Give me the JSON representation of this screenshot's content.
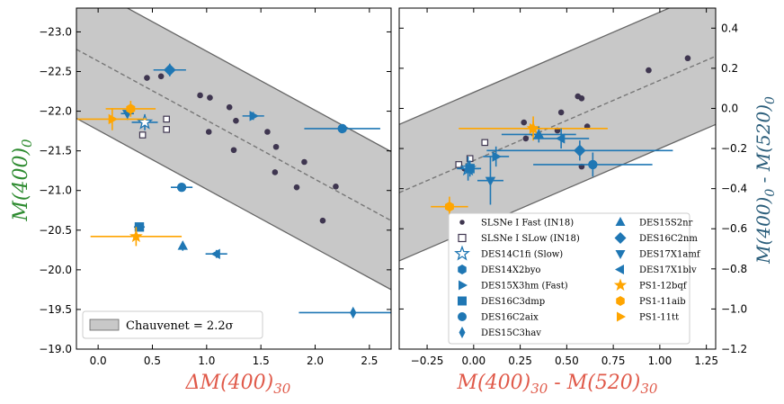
{
  "colors": {
    "blue": "#1f77b4",
    "orange": "#ffa500",
    "dark": "#3f3650",
    "green": "#2e8b30",
    "red": "#e05a4a",
    "teal": "#2a5d7a",
    "band": "#c8c8c8",
    "band_edge": "#666666"
  },
  "chart_data": [
    {
      "type": "scatter",
      "panel": "left",
      "xlabel": "ΔM(400)30",
      "ylabel": "M(400)0",
      "xlim": [
        -0.2,
        2.7
      ],
      "ylim": [
        -19.0,
        -23.3
      ],
      "xticks": [
        0.0,
        0.5,
        1.0,
        1.5,
        2.0,
        2.5
      ],
      "xtick_labels": [
        "0.0",
        "0.5",
        "1.0",
        "1.5",
        "2.0",
        "2.5"
      ],
      "yticks": [
        -19.0,
        -19.5,
        -20.0,
        -20.5,
        -21.0,
        -21.5,
        -22.0,
        -22.5,
        -23.0
      ],
      "ytick_labels": [
        "−19.0",
        "−19.5",
        "−20.0",
        "−20.5",
        "−21.0",
        "−21.5",
        "−22.0",
        "−22.5",
        "−23.0"
      ],
      "trend": {
        "y_at_xmin": -22.78,
        "y_at_xmax": -20.62,
        "band_halfwidth": 0.87
      },
      "legend_label": "Chauvenet = 2.2σ",
      "fast_points": [
        [
          0.45,
          -22.42
        ],
        [
          0.58,
          -22.44
        ],
        [
          0.94,
          -22.2
        ],
        [
          1.03,
          -22.17
        ],
        [
          1.02,
          -21.74
        ],
        [
          1.21,
          -22.05
        ],
        [
          1.27,
          -21.88
        ],
        [
          1.25,
          -21.51
        ],
        [
          1.56,
          -21.74
        ],
        [
          1.64,
          -21.55
        ],
        [
          1.63,
          -21.23
        ],
        [
          1.83,
          -21.04
        ],
        [
          1.9,
          -21.36
        ],
        [
          2.07,
          -20.62
        ],
        [
          2.19,
          -21.05
        ]
      ],
      "slow_points": [
        [
          0.41,
          -21.7
        ],
        [
          0.63,
          -21.77
        ],
        [
          0.63,
          -21.9
        ]
      ],
      "objects": [
        {
          "name": "DES16C2nm",
          "marker": "diamond",
          "color": "blue",
          "x": 0.66,
          "y": -22.52,
          "xerr": 0.15,
          "yerr": 0.08
        },
        {
          "name": "DES15X3hm",
          "marker": "tri-right",
          "color": "blue",
          "x": 1.43,
          "y": -21.94,
          "xerr": 0.1,
          "yerr": 0.05
        },
        {
          "name": "DES14C1fi",
          "marker": "star-open",
          "color": "blue",
          "x": 0.43,
          "y": -21.86,
          "xerr": 0.12,
          "yerr": 0.1
        },
        {
          "name": "DES17X1amf",
          "marker": "tri-down",
          "color": "blue",
          "x": 0.27,
          "y": -21.97,
          "xerr": 0.06,
          "yerr": 0.08
        },
        {
          "name": "PS1-11aib",
          "marker": "hexagon",
          "color": "orange",
          "x": 0.3,
          "y": -22.03,
          "xerr": 0.23,
          "yerr": 0.1
        },
        {
          "name": "PS1-11tt",
          "marker": "tri-right",
          "color": "orange",
          "x": 0.13,
          "y": -21.9,
          "xerr": 0.32,
          "yerr": 0.14
        },
        {
          "name": "DES16C2aix",
          "marker": "circle",
          "color": "blue",
          "x": 2.25,
          "y": -21.78,
          "xerr": 0.35,
          "yerr": 0.05
        },
        {
          "name": "DES16C2aix",
          "marker": "circle",
          "color": "blue",
          "x": 0.77,
          "y": -21.04,
          "xerr": 0.1,
          "yerr": 0.05
        },
        {
          "name": "DES16C3dmp",
          "marker": "square",
          "color": "blue",
          "x": 0.38,
          "y": -20.54,
          "xerr": 0.05,
          "yerr": 0.05
        },
        {
          "name": "PS1-12bqf",
          "marker": "star",
          "color": "orange",
          "x": 0.35,
          "y": -20.42,
          "xerr": 0.42,
          "yerr": 0.12
        },
        {
          "name": "DES15S2nr",
          "marker": "tri-up",
          "color": "blue",
          "x": 0.78,
          "y": -20.3,
          "xerr": 0.02,
          "yerr": 0.06
        },
        {
          "name": "DES17X1blv",
          "marker": "tri-left",
          "color": "blue",
          "x": 1.09,
          "y": -20.2,
          "xerr": 0.1,
          "yerr": 0.05
        },
        {
          "name": "DES15C3hav",
          "marker": "thin-diamond",
          "color": "blue",
          "x": 2.35,
          "y": -19.46,
          "xerr": 0.5,
          "yerr": 0.05
        }
      ]
    },
    {
      "type": "scatter",
      "panel": "right",
      "xlabel": "M(400)30 - M(520)30",
      "ylabel": "M(400)0 - M(520)0",
      "xlim": [
        -0.4,
        1.3
      ],
      "ylim": [
        -1.2,
        0.5
      ],
      "xticks": [
        -0.25,
        0.0,
        0.25,
        0.5,
        0.75,
        1.0,
        1.25
      ],
      "xtick_labels": [
        "−0.25",
        "0.00",
        "0.25",
        "0.50",
        "0.75",
        "1.00",
        "1.25"
      ],
      "yticks": [
        -1.2,
        -1.0,
        -0.8,
        -0.6,
        -0.4,
        -0.2,
        0.0,
        0.2,
        0.4
      ],
      "ytick_labels": [
        "−1.2",
        "−1.0",
        "−0.8",
        "−0.6",
        "−0.4",
        "−0.2",
        "0.0",
        "0.2",
        "0.4"
      ],
      "trend": {
        "y_at_xmin": -0.42,
        "y_at_xmax": 0.26,
        "band_halfwidth": 0.34
      },
      "fast_points": [
        [
          -0.05,
          -0.3
        ],
        [
          0.27,
          -0.07
        ],
        [
          0.28,
          -0.15
        ],
        [
          0.45,
          -0.11
        ],
        [
          0.47,
          -0.02
        ],
        [
          0.56,
          0.06
        ],
        [
          0.58,
          0.05
        ],
        [
          0.58,
          -0.29
        ],
        [
          0.61,
          -0.09
        ],
        [
          0.94,
          0.19
        ],
        [
          1.15,
          0.25
        ]
      ],
      "slow_points": [
        [
          -0.08,
          -0.28
        ],
        [
          -0.02,
          -0.25
        ],
        [
          0.06,
          -0.17
        ]
      ],
      "objects": [
        {
          "name": "PS1-12bqf",
          "marker": "star",
          "color": "orange",
          "x": 0.32,
          "y": -0.1,
          "xerr": 0.4,
          "yerr": 0.06
        },
        {
          "name": "DES16C2nm",
          "marker": "diamond",
          "color": "blue",
          "x": 0.57,
          "y": -0.21,
          "xerr": 0.5,
          "yerr": 0.05
        },
        {
          "name": "DES17X1blv",
          "marker": "tri-left",
          "color": "blue",
          "x": 0.47,
          "y": -0.15,
          "xerr": 0.15,
          "yerr": 0.05
        },
        {
          "name": "DES15S2nr",
          "marker": "tri-up",
          "color": "blue",
          "x": 0.35,
          "y": -0.13,
          "xerr": 0.2,
          "yerr": 0.04
        },
        {
          "name": "DES15X3hm",
          "marker": "tri-right",
          "color": "blue",
          "x": 0.12,
          "y": -0.24,
          "xerr": 0.07,
          "yerr": 0.05
        },
        {
          "name": "DES14C1fi",
          "marker": "star-open",
          "color": "blue",
          "x": -0.03,
          "y": -0.3,
          "xerr": 0.06,
          "yerr": 0.06
        },
        {
          "name": "DES16C3dmp",
          "marker": "square",
          "color": "blue",
          "x": -0.02,
          "y": -0.3,
          "xerr": 0.06,
          "yerr": 0.04
        },
        {
          "name": "DES17X1amf",
          "marker": "tri-down",
          "color": "blue",
          "x": 0.09,
          "y": -0.36,
          "xerr": 0.07,
          "yerr": 0.12
        },
        {
          "name": "DES16C2aix",
          "marker": "circle",
          "color": "blue",
          "x": 0.64,
          "y": -0.28,
          "xerr": 0.32,
          "yerr": 0.06
        },
        {
          "name": "PS1-11aib",
          "marker": "hexagon",
          "color": "orange",
          "x": -0.13,
          "y": -0.49,
          "xerr": 0.1,
          "yerr": 0.05
        },
        {
          "name": "PS1-11tt",
          "marker": "tri-right",
          "color": "orange",
          "x": 0.32,
          "y": -0.1,
          "xerr": 0.05,
          "yerr": 0.04
        }
      ],
      "legend": [
        {
          "label": "SLSNe I Fast (IN18)",
          "marker": "dot",
          "color": "dark"
        },
        {
          "label": "SLSNe I SLow (IN18)",
          "marker": "square-open",
          "color": "dark"
        },
        {
          "label": "DES14C1fi (Slow)",
          "marker": "star-open",
          "color": "blue"
        },
        {
          "label": "DES14X2byo",
          "marker": "hexagon",
          "color": "blue"
        },
        {
          "label": "DES15X3hm (Fast)",
          "marker": "tri-right",
          "color": "blue"
        },
        {
          "label": "DES16C3dmp",
          "marker": "square",
          "color": "blue"
        },
        {
          "label": "DES16C2aix",
          "marker": "circle",
          "color": "blue"
        },
        {
          "label": "DES15C3hav",
          "marker": "thin-diamond",
          "color": "blue"
        },
        {
          "label": "DES15S2nr",
          "marker": "tri-up",
          "color": "blue"
        },
        {
          "label": "DES16C2nm",
          "marker": "diamond",
          "color": "blue"
        },
        {
          "label": "DES17X1amf",
          "marker": "tri-down",
          "color": "blue"
        },
        {
          "label": "DES17X1blv",
          "marker": "tri-left",
          "color": "blue"
        },
        {
          "label": "PS1-12bqf",
          "marker": "star",
          "color": "orange"
        },
        {
          "label": "PS1-11aib",
          "marker": "hexagon",
          "color": "orange"
        },
        {
          "label": "PS1-11tt",
          "marker": "tri-right",
          "color": "orange"
        }
      ]
    }
  ]
}
